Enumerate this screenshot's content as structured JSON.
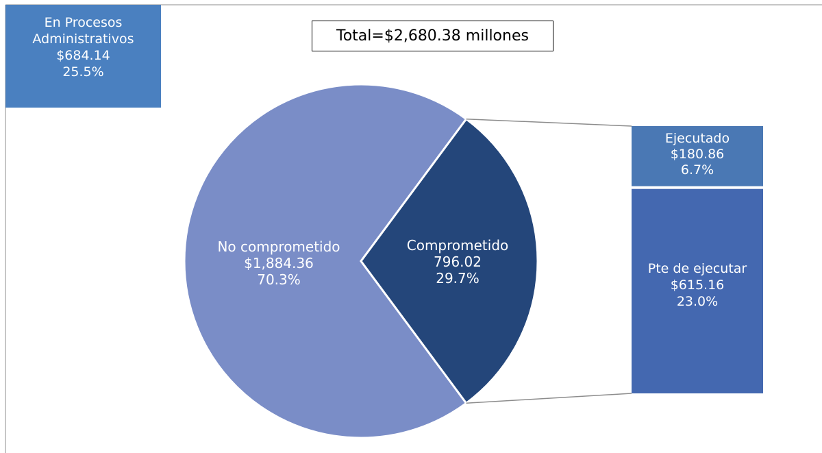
{
  "chart_data": {
    "type": "pie",
    "title": "Total=$2,680.38 millones",
    "slices": [
      {
        "key": "no_comprometido",
        "name": "No comprometido",
        "value_label": "$1,884.36",
        "value": 1884.36,
        "percent_label": "70.3%",
        "percent": 70.3,
        "color": "#7a8dc7"
      },
      {
        "key": "comprometido",
        "name": "Comprometido",
        "value_label": "796.02",
        "value": 796.02,
        "percent_label": "29.7%",
        "percent": 29.7,
        "color": "#24467a"
      }
    ],
    "breakdown": {
      "parent": "Comprometido",
      "items": [
        {
          "key": "ejecutado",
          "name": "Ejecutado",
          "value_label": "$180.86",
          "value": 180.86,
          "percent_label": "6.7%",
          "percent": 6.7,
          "color": "#4a78b4"
        },
        {
          "key": "pte_ejecutar",
          "name": "Pte de ejecutar",
          "value_label": "$615.16",
          "value": 615.16,
          "percent_label": "23.0%",
          "percent": 23.0,
          "color": "#4468b0"
        }
      ]
    },
    "annotation": {
      "lines": [
        "En Procesos",
        "Administrativos"
      ],
      "value_label": "$684.14",
      "value": 684.14,
      "percent_label": "25.5%",
      "percent": 25.5,
      "color": "#4a80c0"
    }
  }
}
